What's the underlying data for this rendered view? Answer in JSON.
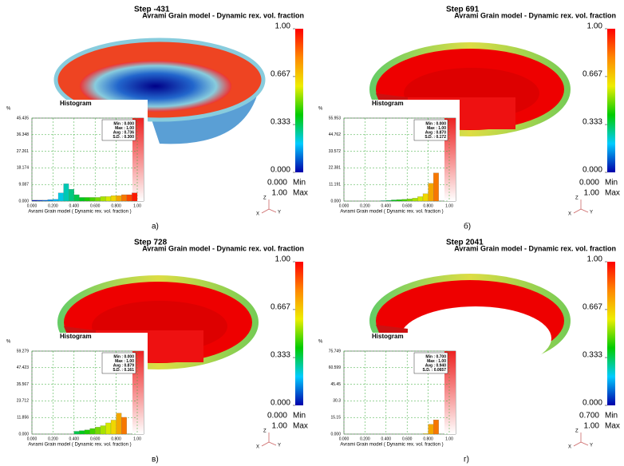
{
  "axes": [
    "Z",
    "X",
    "Y"
  ],
  "panels": [
    {
      "step": "Step -431",
      "title": "Avrami Grain model - Dynamic rex. vol. fraction",
      "colorbar": [
        {
          "value": 1,
          "label": "1.00"
        },
        0.667,
        0.333,
        {
          "value": 0,
          "label": "0.000"
        }
      ],
      "min": {
        "value": 0,
        "label": "0.000"
      },
      "min_label": "Min",
      "max": {
        "value": 1,
        "label": "1.00"
      },
      "max_label": "Max",
      "histogram": {
        "title": "Histogram",
        "ylabel": "%",
        "xlabel": "Avrami Grain model ( Dynamic rex. vol. fraction )",
        "ylim": [
          0,
          45.435
        ],
        "yticks": [
          {
            "value": 0,
            "label": "0.000"
          },
          9.087,
          18.174,
          27.261,
          36.348,
          45.435
        ],
        "xlim": [
          0,
          1
        ],
        "xticks": [
          {
            "value": 0,
            "label": "0.000"
          },
          {
            "value": 0.2,
            "label": "0.200"
          },
          {
            "value": 0.4,
            "label": "0.400"
          },
          {
            "value": 0.6,
            "label": "0.600"
          },
          {
            "value": 0.8,
            "label": "0.800"
          },
          {
            "value": 1,
            "label": "1.00"
          }
        ],
        "stats": [
          "Min : 0.000",
          "Max : 1.00",
          "Avg : 0.736",
          "S.D. : 0.300"
        ],
        "bins": [
          0,
          0.05,
          0.1,
          0.15,
          0.2,
          0.25,
          0.3,
          0.35,
          0.4,
          0.45,
          0.5,
          0.55,
          0.6,
          0.65,
          0.7,
          0.75,
          0.8,
          0.85,
          0.9,
          0.95,
          1
        ],
        "values": [
          0.5,
          0.5,
          0.5,
          0.8,
          1,
          4.5,
          9.5,
          6.5,
          3.5,
          2,
          2,
          2,
          2,
          2.5,
          2.5,
          3,
          3,
          3.5,
          3.5,
          4.5
        ]
      },
      "caption": "а)"
    },
    {
      "step": "Step  691",
      "title": "Avrami Grain model - Dynamic rex. vol. fraction",
      "colorbar": [
        {
          "value": 1,
          "label": "1.00"
        },
        0.667,
        0.333,
        {
          "value": 0,
          "label": "0.000"
        }
      ],
      "min": {
        "value": 0,
        "label": "0.000"
      },
      "min_label": "Min",
      "max": {
        "value": 1,
        "label": "1.00"
      },
      "max_label": "Max",
      "histogram": {
        "title": "Histogram",
        "ylabel": "%",
        "xlabel": "Avrami Grain model ( Dynamic rex. vol. fraction )",
        "ylim": [
          0,
          55.953
        ],
        "yticks": [
          {
            "value": 0,
            "label": "0.000"
          },
          11.191,
          22.381,
          33.572,
          44.762,
          55.953
        ],
        "xlim": [
          0,
          1
        ],
        "xticks": [
          {
            "value": 0,
            "label": "0.000"
          },
          {
            "value": 0.2,
            "label": "0.200"
          },
          {
            "value": 0.4,
            "label": "0.400"
          },
          {
            "value": 0.6,
            "label": "0.600"
          },
          {
            "value": 0.8,
            "label": "0.800"
          },
          {
            "value": 1,
            "label": "1.00"
          }
        ],
        "stats": [
          "Min : 0.000",
          "Max : 1.00",
          "Avg : 0.870",
          "S.D. : 0.172"
        ],
        "bins": [
          0,
          0.05,
          0.1,
          0.15,
          0.2,
          0.25,
          0.3,
          0.35,
          0.4,
          0.45,
          0.5,
          0.55,
          0.6,
          0.65,
          0.7,
          0.75,
          0.8,
          0.85,
          0.9,
          0.95,
          1
        ],
        "values": [
          0,
          0,
          0,
          0,
          0,
          0,
          0,
          0.3,
          0.5,
          0.8,
          1,
          1.2,
          1.5,
          2,
          3,
          5,
          12,
          19,
          0,
          0
        ]
      },
      "caption": "б)"
    },
    {
      "step": "Step  728",
      "title": "Avrami Grain model - Dynamic rex. vol. fraction",
      "colorbar": [
        {
          "value": 1,
          "label": "1.00"
        },
        0.667,
        0.333,
        {
          "value": 0,
          "label": "0.000"
        }
      ],
      "min": {
        "value": 0,
        "label": "0.000"
      },
      "min_label": "Min",
      "max": {
        "value": 1,
        "label": "1.00"
      },
      "max_label": "Max",
      "histogram": {
        "title": "Histogram",
        "ylabel": "%",
        "xlabel": "Avrami Grain model ( Dynamic rex. vol. fraction )",
        "ylim": [
          0,
          59.279
        ],
        "yticks": [
          {
            "value": 0,
            "label": "0.000"
          },
          11.856,
          23.712,
          35.567,
          47.423,
          59.279
        ],
        "xlim": [
          0,
          1
        ],
        "xticks": [
          {
            "value": 0,
            "label": "0.000"
          },
          {
            "value": 0.2,
            "label": "0.200"
          },
          {
            "value": 0.4,
            "label": "0.400"
          },
          {
            "value": 0.6,
            "label": "0.600"
          },
          {
            "value": 0.8,
            "label": "0.800"
          },
          {
            "value": 1,
            "label": "1.00"
          }
        ],
        "stats": [
          "Min : 0.000",
          "Max : 1.00",
          "Avg : 0.879",
          "S.D. : 0.161"
        ],
        "bins": [
          0,
          0.05,
          0.1,
          0.15,
          0.2,
          0.25,
          0.3,
          0.35,
          0.4,
          0.45,
          0.5,
          0.55,
          0.6,
          0.65,
          0.7,
          0.75,
          0.8,
          0.85,
          0.9,
          0.95,
          1
        ],
        "values": [
          0,
          0,
          0,
          0,
          0,
          0,
          0,
          0,
          2,
          2.5,
          3,
          4,
          5,
          6,
          8,
          10,
          15,
          12,
          0,
          0
        ]
      },
      "caption": "в)"
    },
    {
      "step": "Step 2041",
      "title": "Avrami Grain model - Dynamic rex. vol. fraction",
      "colorbar": [
        {
          "value": 1,
          "label": "1.00"
        },
        0.667,
        0.333,
        {
          "value": 0,
          "label": "0.000"
        }
      ],
      "min": {
        "value": 0.7,
        "label": "0.700"
      },
      "min_label": "Min",
      "max": {
        "value": 1,
        "label": "1.00"
      },
      "max_label": "Max",
      "histogram": {
        "title": "Histogram",
        "ylabel": "%",
        "xlabel": "Avrami Grain model ( Dynamic rex. vol. fraction )",
        "ylim": [
          0,
          75.749
        ],
        "yticks": [
          {
            "value": 0,
            "label": "0.000"
          },
          15.15,
          30.3,
          45.45,
          60.599,
          75.749
        ],
        "xlim": [
          0,
          1
        ],
        "xticks": [
          {
            "value": 0,
            "label": "0.000"
          },
          {
            "value": 0.2,
            "label": "0.200"
          },
          {
            "value": 0.4,
            "label": "0.400"
          },
          {
            "value": 0.6,
            "label": "0.600"
          },
          {
            "value": 0.8,
            "label": "0.800"
          },
          {
            "value": 1,
            "label": "1.00"
          }
        ],
        "stats": [
          "Min : 0.700",
          "Max : 1.00",
          "Avg : 0.940",
          "S.D. : 0.0657"
        ],
        "bins": [
          0,
          0.05,
          0.1,
          0.15,
          0.2,
          0.25,
          0.3,
          0.35,
          0.4,
          0.45,
          0.5,
          0.55,
          0.6,
          0.65,
          0.7,
          0.75,
          0.8,
          0.85,
          0.9,
          0.95,
          1
        ],
        "values": [
          0,
          0,
          0,
          0,
          0,
          0,
          0,
          0,
          0,
          0,
          0,
          0,
          0,
          0,
          0,
          0.5,
          9,
          13,
          0,
          0
        ]
      },
      "caption": "г)"
    }
  ]
}
